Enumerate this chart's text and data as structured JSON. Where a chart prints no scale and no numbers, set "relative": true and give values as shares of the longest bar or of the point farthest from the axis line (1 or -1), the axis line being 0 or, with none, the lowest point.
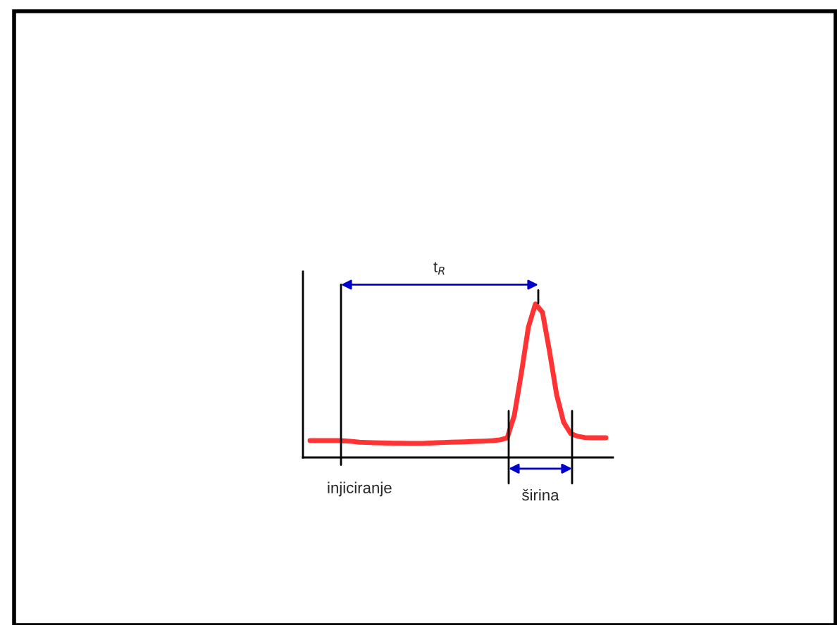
{
  "chart_data": {
    "type": "line",
    "relative": true,
    "categories": [
      null,
      null,
      null,
      null,
      null,
      null,
      null,
      null,
      null,
      null,
      null,
      null,
      null,
      null,
      null,
      null,
      null,
      null,
      null,
      null,
      null,
      null,
      null,
      null,
      null,
      null,
      null,
      null,
      null,
      null,
      null,
      null,
      null,
      null,
      null,
      null,
      null,
      null,
      null,
      null,
      null,
      null,
      null
    ],
    "series": [
      {
        "color": "#ff3333",
        "values": [
          0.11,
          0.11,
          0.11,
          0.11,
          0.11,
          0.108,
          0.105,
          0.1,
          0.098,
          0.096,
          0.095,
          0.094,
          0.093,
          0.093,
          0.092,
          0.092,
          0.092,
          0.094,
          0.096,
          0.098,
          0.1,
          0.101,
          0.102,
          0.104,
          0.105,
          0.107,
          0.11,
          0.115,
          0.128,
          0.275,
          0.55,
          0.85,
          1.0,
          0.945,
          0.69,
          0.41,
          0.23,
          0.156,
          0.138,
          0.13,
          0.128,
          0.128,
          0.128
        ]
      }
    ],
    "annotations": [
      "t$_{R}$",
      "injiciranje",
      "širina"
    ],
    "grid": false,
    "marker": "none",
    "line_style": "solid"
  }
}
